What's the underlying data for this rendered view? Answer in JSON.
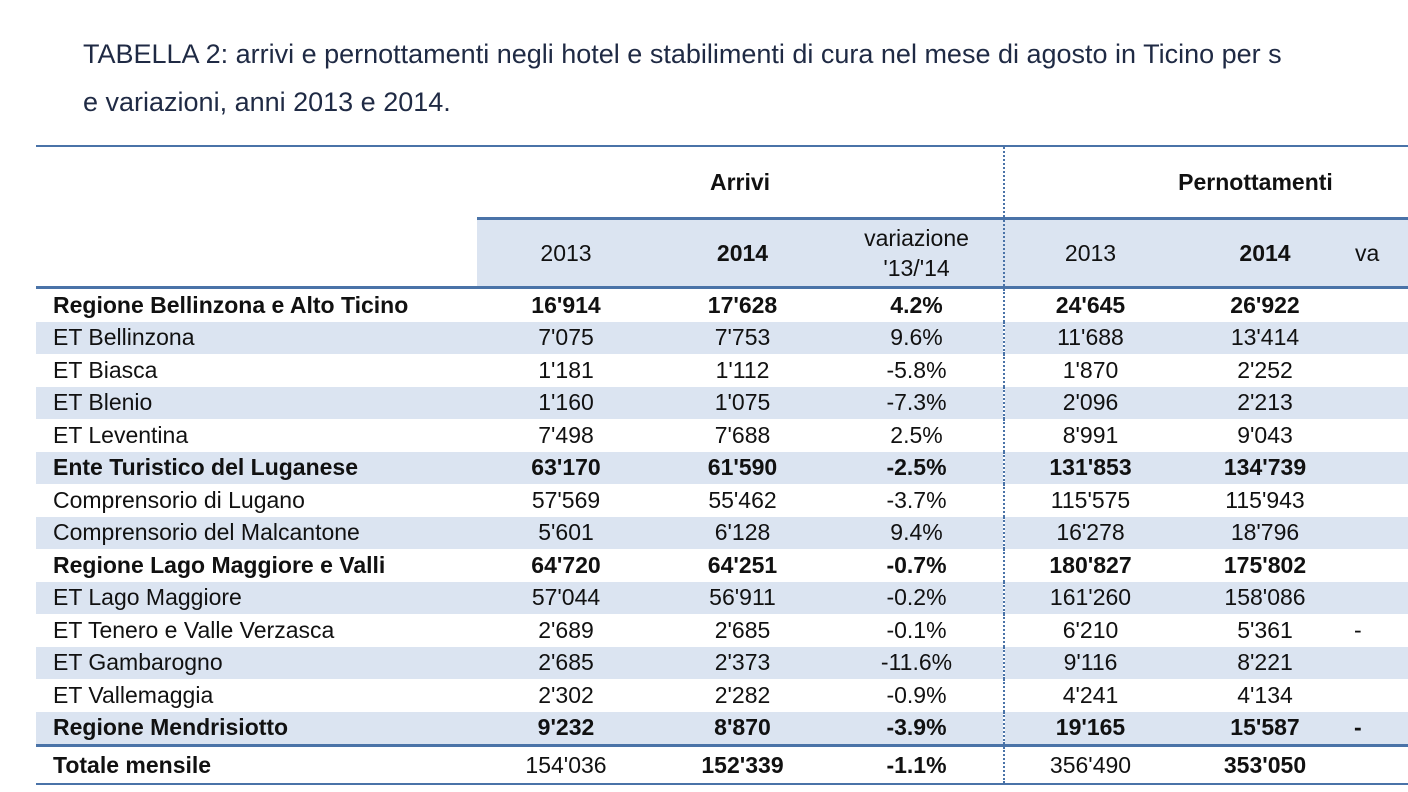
{
  "caption": {
    "line1": "TABELLA 2: arrivi e pernottamenti negli hotel e stabilimenti di cura nel mese di agosto in Ticino per s",
    "line2": "e variazioni, anni 2013 e 2014."
  },
  "header": {
    "arrivi": "Arrivi",
    "pernottamenti": "Pernottamenti",
    "y2013": "2013",
    "y2014": "2014",
    "variazione_line1": "variazione",
    "variazione_line2": "'13/'14",
    "pern_var_fragment_line1": "va",
    "pern_var_fragment_line2": ""
  },
  "rows": [
    {
      "label": "Regione Bellinzona e Alto Ticino",
      "a2013": "16'914",
      "a2014": "17'628",
      "avar": "4.2%",
      "p2013": "24'645",
      "p2014": "26'922",
      "pvar": ""
    },
    {
      "label": "ET Bellinzona",
      "a2013": "7'075",
      "a2014": "7'753",
      "avar": "9.6%",
      "p2013": "11'688",
      "p2014": "13'414",
      "pvar": ""
    },
    {
      "label": "ET Biasca",
      "a2013": "1'181",
      "a2014": "1'112",
      "avar": "-5.8%",
      "p2013": "1'870",
      "p2014": "2'252",
      "pvar": ""
    },
    {
      "label": "ET Blenio",
      "a2013": "1'160",
      "a2014": "1'075",
      "avar": "-7.3%",
      "p2013": "2'096",
      "p2014": "2'213",
      "pvar": ""
    },
    {
      "label": "ET Leventina",
      "a2013": "7'498",
      "a2014": "7'688",
      "avar": "2.5%",
      "p2013": "8'991",
      "p2014": "9'043",
      "pvar": ""
    },
    {
      "label": "Ente Turistico del Luganese",
      "a2013": "63'170",
      "a2014": "61'590",
      "avar": "-2.5%",
      "p2013": "131'853",
      "p2014": "134'739",
      "pvar": ""
    },
    {
      "label": "Comprensorio di Lugano",
      "a2013": "57'569",
      "a2014": "55'462",
      "avar": "-3.7%",
      "p2013": "115'575",
      "p2014": "115'943",
      "pvar": ""
    },
    {
      "label": "Comprensorio del Malcantone",
      "a2013": "5'601",
      "a2014": "6'128",
      "avar": "9.4%",
      "p2013": "16'278",
      "p2014": "18'796",
      "pvar": ""
    },
    {
      "label": "Regione Lago Maggiore e Valli",
      "a2013": "64'720",
      "a2014": "64'251",
      "avar": "-0.7%",
      "p2013": "180'827",
      "p2014": "175'802",
      "pvar": ""
    },
    {
      "label": "ET Lago Maggiore",
      "a2013": "57'044",
      "a2014": "56'911",
      "avar": "-0.2%",
      "p2013": "161'260",
      "p2014": "158'086",
      "pvar": ""
    },
    {
      "label": "ET Tenero e Valle Verzasca",
      "a2013": "2'689",
      "a2014": "2'685",
      "avar": "-0.1%",
      "p2013": "6'210",
      "p2014": "5'361",
      "pvar": "-"
    },
    {
      "label": "ET Gambarogno",
      "a2013": "2'685",
      "a2014": "2'373",
      "avar": "-11.6%",
      "p2013": "9'116",
      "p2014": "8'221",
      "pvar": ""
    },
    {
      "label": "ET Vallemaggia",
      "a2013": "2'302",
      "a2014": "2'282",
      "avar": "-0.9%",
      "p2013": "4'241",
      "p2014": "4'134",
      "pvar": ""
    },
    {
      "label": "Regione Mendrisiotto",
      "a2013": "9'232",
      "a2014": "8'870",
      "avar": "-3.9%",
      "p2013": "19'165",
      "p2014": "15'587",
      "pvar": "-"
    }
  ],
  "total": {
    "label": "Totale mensile",
    "a2013": "154'036",
    "a2014": "152'339",
    "avar": "-1.1%",
    "p2013": "356'490",
    "p2014": "353'050",
    "pvar": ""
  },
  "colors": {
    "rule": "#4a73a8",
    "shade": "#dbe4f1",
    "caption": "#1f2a44"
  }
}
